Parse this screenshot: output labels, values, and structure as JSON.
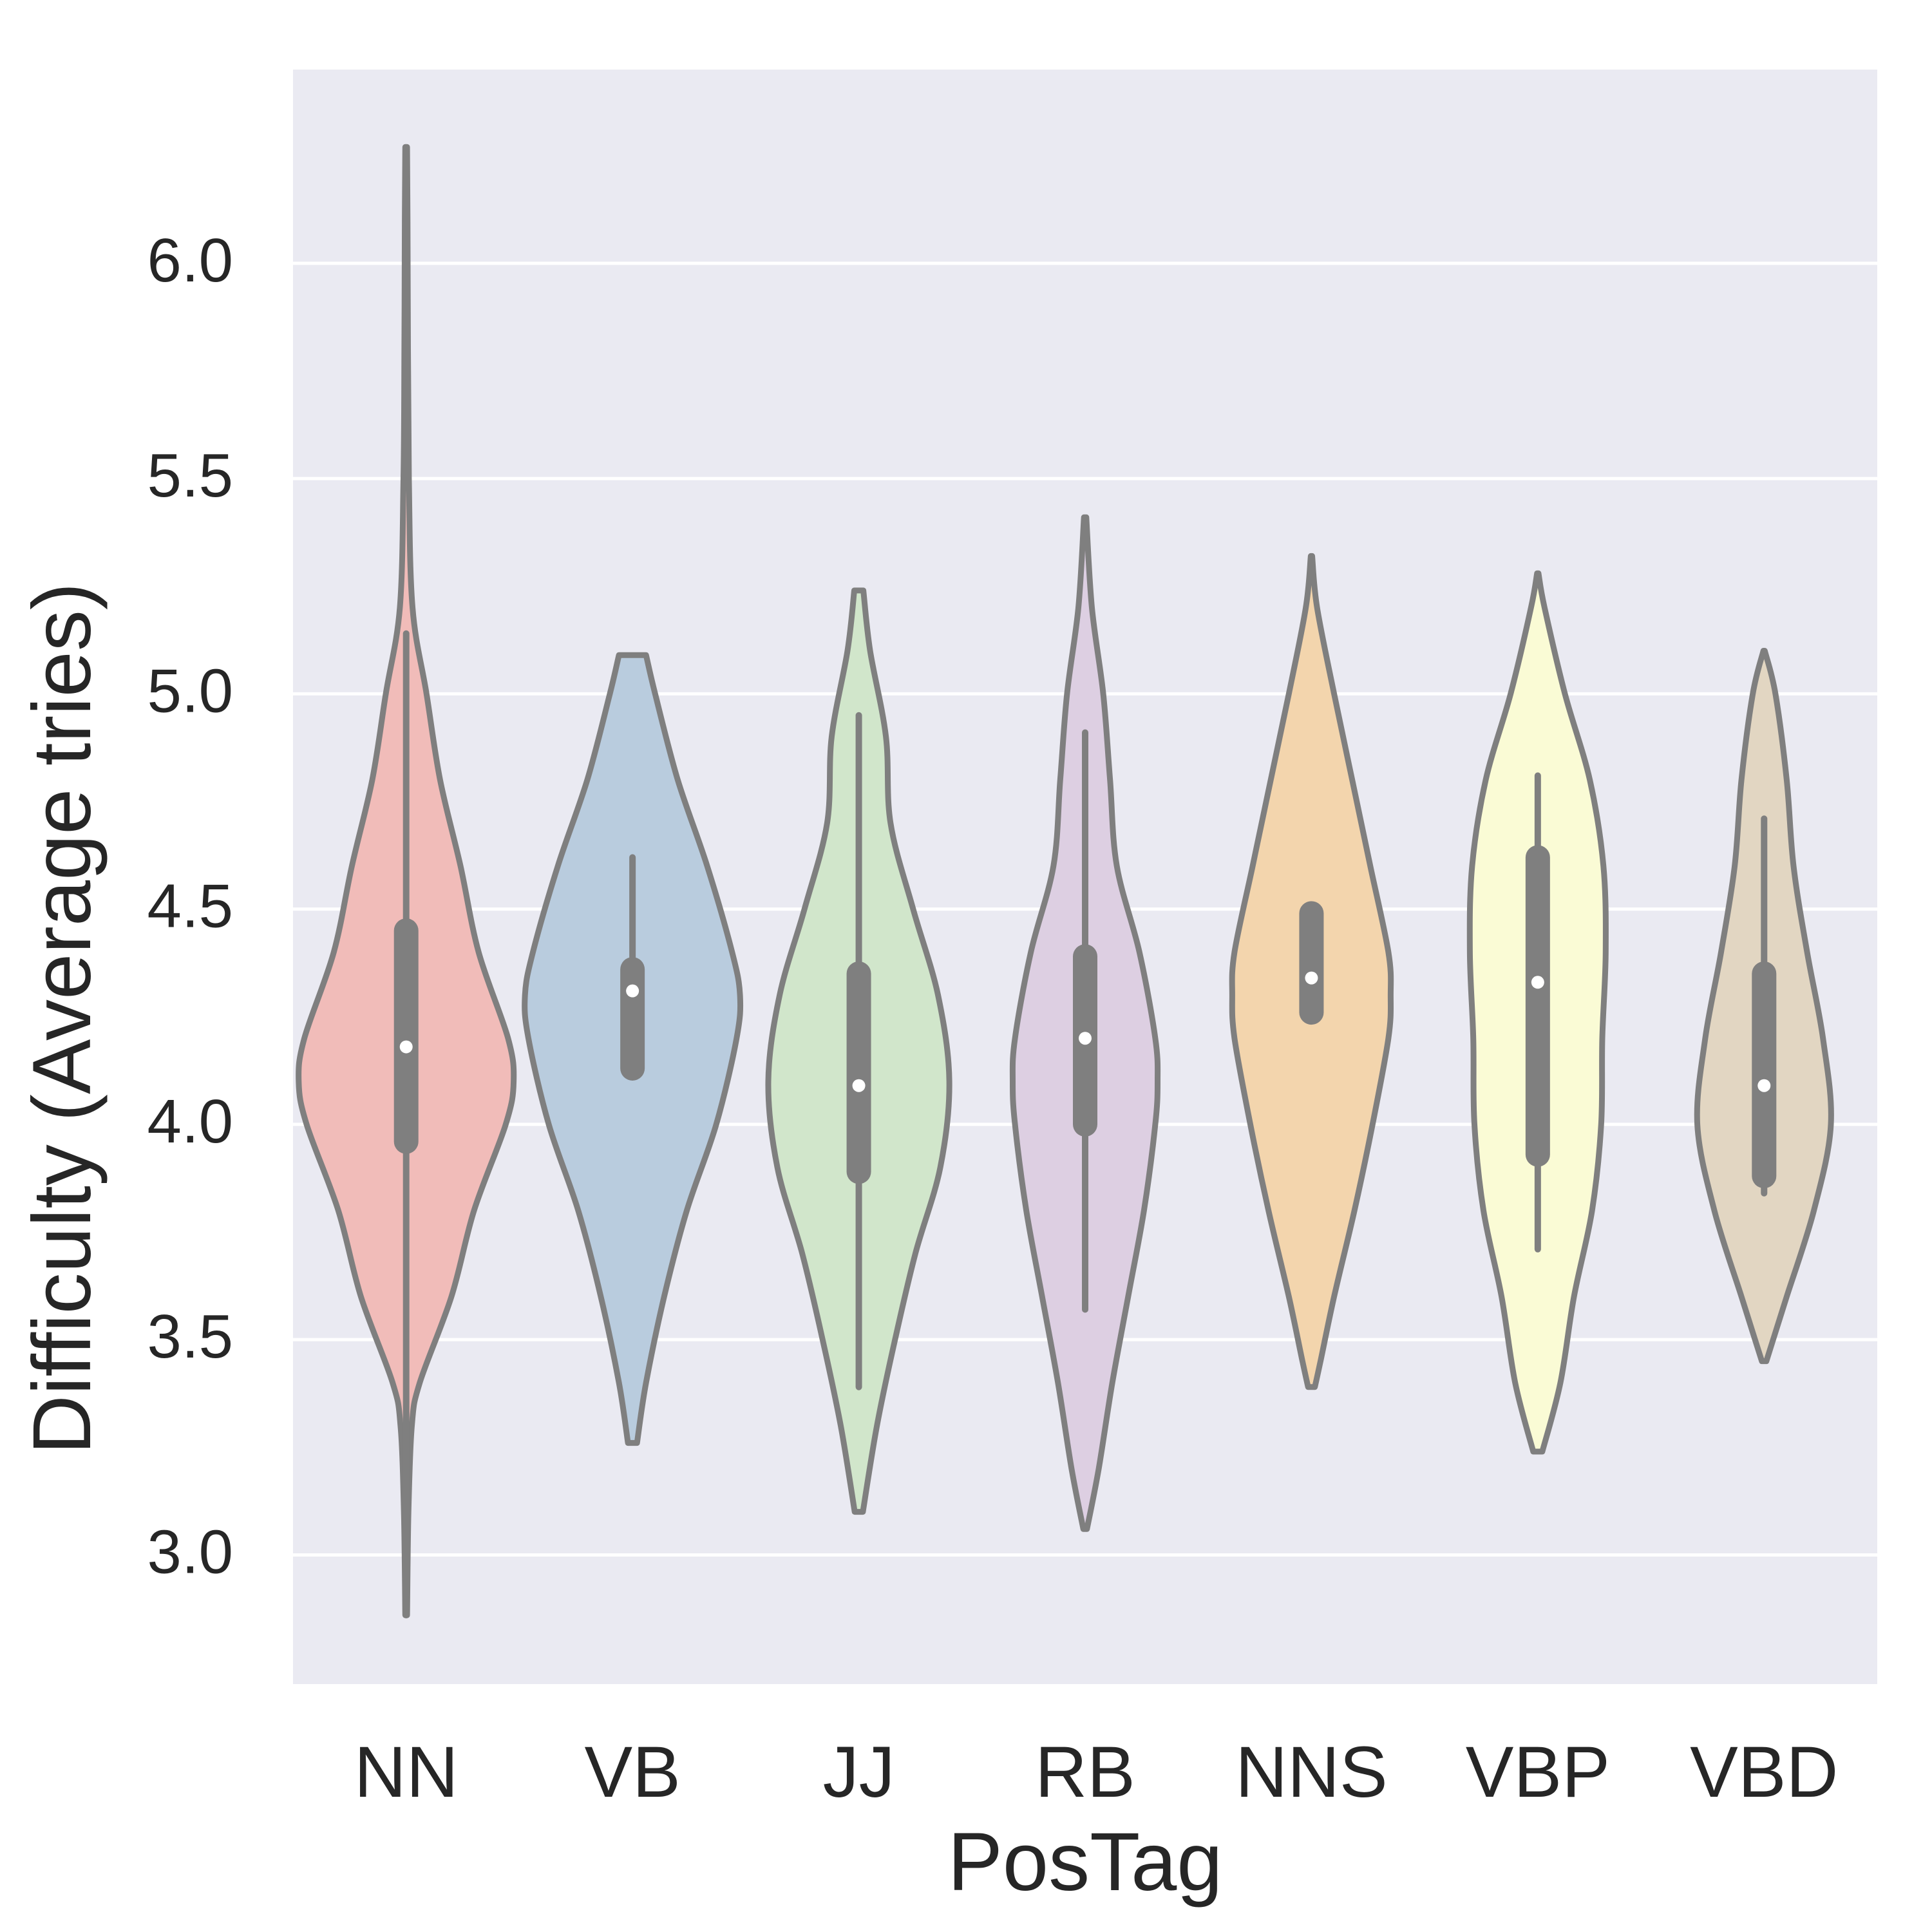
{
  "chart_data": {
    "type": "violin",
    "title": "",
    "xlabel": "PosTag",
    "ylabel": "Difficulty (Average tries)",
    "ylim": [
      2.7,
      6.45
    ],
    "yticks": [
      3.0,
      3.5,
      4.0,
      4.5,
      5.0,
      5.5,
      6.0
    ],
    "ytick_labels": [
      "3.0",
      "3.5",
      "4.0",
      "4.5",
      "5.0",
      "5.5",
      "6.0"
    ],
    "grid": true,
    "legend": "none",
    "categories": [
      "NN",
      "VB",
      "JJ",
      "RB",
      "NNS",
      "VBP",
      "VBD"
    ],
    "series": [
      {
        "category": "NN",
        "color": "#f1bcb9",
        "median": 4.18,
        "q1": 3.96,
        "q3": 4.45,
        "whisker_low": 2.86,
        "whisker_high": 5.14,
        "profile": [
          [
            6.27,
            0.004
          ],
          [
            6.1,
            0.006
          ],
          [
            5.8,
            0.008
          ],
          [
            5.5,
            0.012
          ],
          [
            5.2,
            0.028
          ],
          [
            5.0,
            0.09
          ],
          [
            4.8,
            0.15
          ],
          [
            4.6,
            0.24
          ],
          [
            4.4,
            0.32
          ],
          [
            4.2,
            0.45
          ],
          [
            4.1,
            0.475
          ],
          [
            4.0,
            0.44
          ],
          [
            3.8,
            0.3
          ],
          [
            3.6,
            0.2
          ],
          [
            3.4,
            0.06
          ],
          [
            3.3,
            0.025
          ],
          [
            3.1,
            0.01
          ],
          [
            2.86,
            0.004
          ]
        ]
      },
      {
        "category": "VB",
        "color": "#b9ccde",
        "median": 4.31,
        "q1": 4.13,
        "q3": 4.36,
        "whisker_low": 4.13,
        "whisker_high": 4.62,
        "profile": [
          [
            5.09,
            0.06
          ],
          [
            5.0,
            0.1
          ],
          [
            4.8,
            0.2
          ],
          [
            4.6,
            0.33
          ],
          [
            4.4,
            0.44
          ],
          [
            4.3,
            0.475
          ],
          [
            4.2,
            0.46
          ],
          [
            4.0,
            0.37
          ],
          [
            3.8,
            0.24
          ],
          [
            3.6,
            0.14
          ],
          [
            3.4,
            0.06
          ],
          [
            3.26,
            0.02
          ]
        ]
      },
      {
        "category": "JJ",
        "color": "#d1e6cb",
        "median": 4.09,
        "q1": 3.89,
        "q3": 4.35,
        "whisker_low": 3.39,
        "whisker_high": 4.95,
        "profile": [
          [
            5.24,
            0.02
          ],
          [
            5.1,
            0.05
          ],
          [
            4.9,
            0.12
          ],
          [
            4.7,
            0.14
          ],
          [
            4.5,
            0.24
          ],
          [
            4.3,
            0.35
          ],
          [
            4.1,
            0.4
          ],
          [
            3.9,
            0.36
          ],
          [
            3.7,
            0.25
          ],
          [
            3.5,
            0.16
          ],
          [
            3.3,
            0.08
          ],
          [
            3.1,
            0.018
          ]
        ]
      },
      {
        "category": "RB",
        "color": "#ddcfe2",
        "median": 4.2,
        "q1": 4.0,
        "q3": 4.39,
        "whisker_low": 3.57,
        "whisker_high": 4.91,
        "profile": [
          [
            5.41,
            0.005
          ],
          [
            5.2,
            0.03
          ],
          [
            5.0,
            0.08
          ],
          [
            4.8,
            0.11
          ],
          [
            4.6,
            0.14
          ],
          [
            4.4,
            0.24
          ],
          [
            4.2,
            0.31
          ],
          [
            4.1,
            0.32
          ],
          [
            4.0,
            0.31
          ],
          [
            3.8,
            0.26
          ],
          [
            3.6,
            0.19
          ],
          [
            3.4,
            0.12
          ],
          [
            3.2,
            0.06
          ],
          [
            3.06,
            0.008
          ]
        ]
      },
      {
        "category": "NNS",
        "color": "#f3d5ad",
        "median": 4.34,
        "q1": 4.26,
        "q3": 4.49,
        "whisker_low": 4.26,
        "whisker_high": 4.49,
        "profile": [
          [
            5.32,
            0.003
          ],
          [
            5.2,
            0.025
          ],
          [
            5.0,
            0.1
          ],
          [
            4.8,
            0.18
          ],
          [
            4.6,
            0.26
          ],
          [
            4.4,
            0.34
          ],
          [
            4.3,
            0.35
          ],
          [
            4.2,
            0.34
          ],
          [
            4.0,
            0.27
          ],
          [
            3.8,
            0.19
          ],
          [
            3.6,
            0.1
          ],
          [
            3.45,
            0.04
          ],
          [
            3.39,
            0.015
          ]
        ]
      },
      {
        "category": "VBP",
        "color": "#fafbd5",
        "median": 4.33,
        "q1": 3.93,
        "q3": 4.62,
        "whisker_low": 3.71,
        "whisker_high": 4.81,
        "profile": [
          [
            5.28,
            0.003
          ],
          [
            5.2,
            0.03
          ],
          [
            5.0,
            0.12
          ],
          [
            4.8,
            0.23
          ],
          [
            4.6,
            0.29
          ],
          [
            4.4,
            0.3
          ],
          [
            4.2,
            0.285
          ],
          [
            4.0,
            0.28
          ],
          [
            3.8,
            0.24
          ],
          [
            3.6,
            0.16
          ],
          [
            3.4,
            0.1
          ],
          [
            3.24,
            0.02
          ]
        ]
      },
      {
        "category": "VBD",
        "color": "#e2d6c2",
        "median": 4.09,
        "q1": 3.88,
        "q3": 4.35,
        "whisker_low": 3.84,
        "whisker_high": 4.71,
        "profile": [
          [
            5.1,
            0.003
          ],
          [
            5.0,
            0.05
          ],
          [
            4.8,
            0.1
          ],
          [
            4.6,
            0.13
          ],
          [
            4.4,
            0.19
          ],
          [
            4.2,
            0.26
          ],
          [
            4.0,
            0.295
          ],
          [
            3.8,
            0.22
          ],
          [
            3.6,
            0.1
          ],
          [
            3.5,
            0.04
          ],
          [
            3.45,
            0.01
          ]
        ]
      }
    ]
  }
}
